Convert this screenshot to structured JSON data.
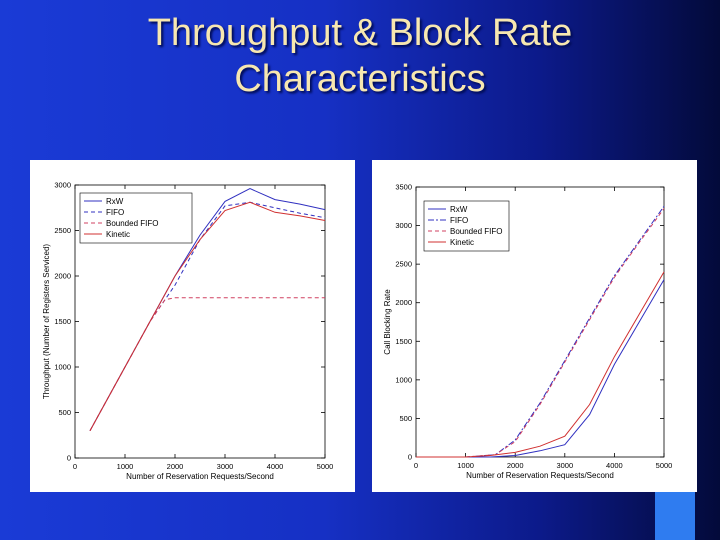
{
  "title": {
    "line1": "Throughput & Block Rate",
    "line2": "Characteristics"
  },
  "chart_data": [
    {
      "type": "line",
      "xlabel": "Number of Reservation Requests/Second",
      "ylabel": "Throughput (Number of Registers Serviced)",
      "xlim": [
        0,
        5000
      ],
      "ylim": [
        0,
        3000
      ],
      "xticks": [
        0,
        1000,
        2000,
        3000,
        4000,
        5000
      ],
      "yticks": [
        0,
        500,
        1000,
        1500,
        2000,
        2500,
        3000
      ],
      "grid": false,
      "legend_position": "top-left",
      "series": [
        {
          "name": "RxW",
          "color": "#3030c0",
          "dash": "",
          "x": [
            300,
            1000,
            1500,
            2000,
            2500,
            3000,
            3500,
            4000,
            4500,
            5000
          ],
          "y": [
            300,
            1000,
            1500,
            2000,
            2450,
            2820,
            2960,
            2840,
            2790,
            2730
          ]
        },
        {
          "name": "FIFO",
          "color": "#3030c0",
          "dash": "4,3",
          "x": [
            300,
            1000,
            1500,
            2000,
            2500,
            3000,
            3500,
            4000,
            4500,
            5000
          ],
          "y": [
            300,
            1000,
            1500,
            1900,
            2400,
            2770,
            2810,
            2750,
            2690,
            2640
          ]
        },
        {
          "name": "Bounded FIFO",
          "color": "#d04060",
          "dash": "4,3",
          "x": [
            300,
            1000,
            1500,
            1800,
            2000,
            2500,
            3000,
            3500,
            4000,
            4500,
            5000
          ],
          "y": [
            300,
            1000,
            1500,
            1740,
            1760,
            1760,
            1760,
            1760,
            1760,
            1760,
            1760
          ]
        },
        {
          "name": "Kinetic",
          "color": "#d03030",
          "dash": "",
          "x": [
            300,
            1000,
            1500,
            2000,
            2500,
            3000,
            3500,
            4000,
            4500,
            5000
          ],
          "y": [
            300,
            1000,
            1500,
            2000,
            2400,
            2720,
            2810,
            2700,
            2660,
            2610
          ]
        }
      ]
    },
    {
      "type": "line",
      "xlabel": "Number of Reservation Requests/Second",
      "ylabel": "Call Blocking Rate",
      "xlim": [
        0,
        5000
      ],
      "ylim": [
        0,
        3500
      ],
      "xticks": [
        0,
        1000,
        2000,
        3000,
        4000,
        5000
      ],
      "yticks": [
        0,
        500,
        1000,
        1500,
        2000,
        2500,
        3000,
        3500
      ],
      "grid": false,
      "legend_position": "top-left",
      "series": [
        {
          "name": "RxW",
          "color": "#3030c0",
          "dash": "",
          "x": [
            0,
            1000,
            1500,
            2000,
            2500,
            3000,
            3500,
            4000,
            4500,
            5000
          ],
          "y": [
            0,
            0,
            0,
            20,
            80,
            160,
            550,
            1200,
            1750,
            2300
          ]
        },
        {
          "name": "FIFO",
          "color": "#3030c0",
          "dash": "6,2,2,2",
          "x": [
            0,
            1000,
            1600,
            2000,
            2500,
            3000,
            3500,
            4000,
            4500,
            5000
          ],
          "y": [
            0,
            0,
            30,
            220,
            700,
            1250,
            1800,
            2350,
            2800,
            3250
          ]
        },
        {
          "name": "Bounded FIFO",
          "color": "#d04060",
          "dash": "4,3",
          "x": [
            0,
            1000,
            1600,
            2000,
            2500,
            3000,
            3500,
            4000,
            4500,
            5000
          ],
          "y": [
            0,
            0,
            30,
            200,
            680,
            1230,
            1780,
            2330,
            2780,
            3220
          ]
        },
        {
          "name": "Kinetic",
          "color": "#d03030",
          "dash": "",
          "x": [
            0,
            1000,
            1500,
            2000,
            2500,
            3000,
            3500,
            4000,
            4500,
            5000
          ],
          "y": [
            0,
            0,
            20,
            60,
            140,
            270,
            680,
            1300,
            1850,
            2400
          ]
        }
      ]
    }
  ]
}
